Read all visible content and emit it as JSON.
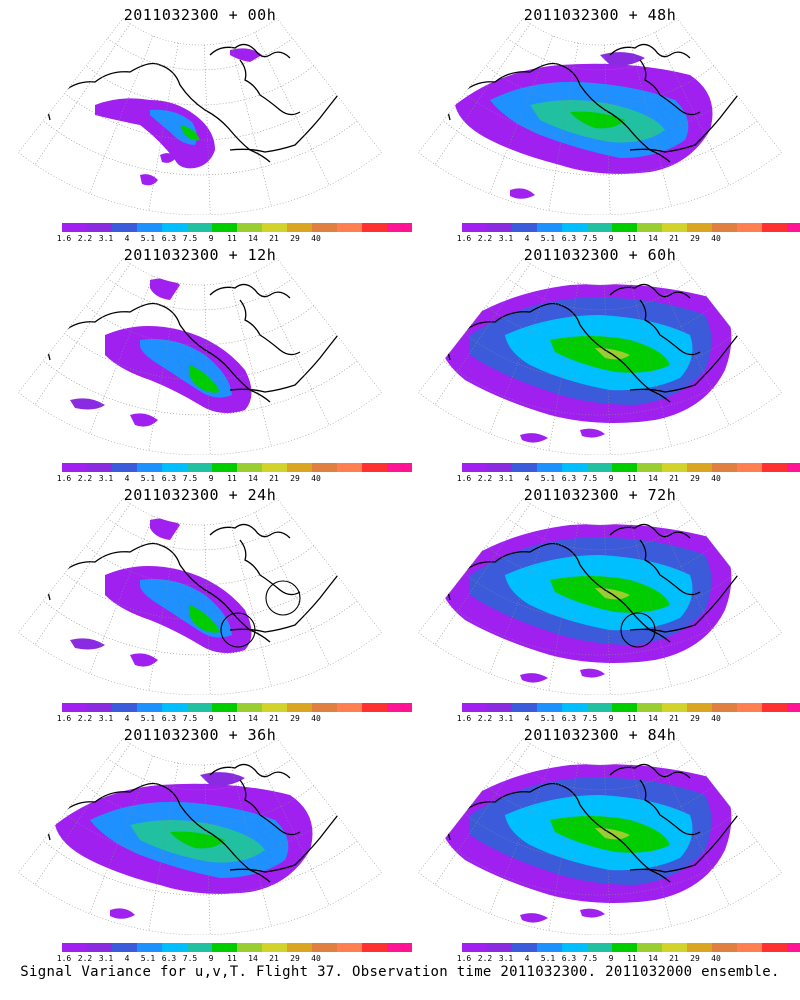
{
  "panels": [
    {
      "title": "2011032300 + 00h",
      "level": 0,
      "circles": 0
    },
    {
      "title": "2011032300 + 48h",
      "level": 2,
      "circles": 0
    },
    {
      "title": "2011032300 + 12h",
      "level": 1,
      "circles": 0
    },
    {
      "title": "2011032300 + 60h",
      "level": 3,
      "circles": 0
    },
    {
      "title": "2011032300 + 24h",
      "level": 1,
      "circles": 2
    },
    {
      "title": "2011032300 + 72h",
      "level": 3,
      "circles": 1
    },
    {
      "title": "2011032300 + 36h",
      "level": 2,
      "circles": 0
    },
    {
      "title": "2011032300 + 84h",
      "level": 3,
      "circles": 0
    }
  ],
  "colorbar": {
    "colors": [
      "#a020f0",
      "#8a2be2",
      "#3b5bdb",
      "#1e90ff",
      "#00bfff",
      "#20c0a0",
      "#00cd00",
      "#9acd32",
      "#d2d22a",
      "#daa520",
      "#e08040",
      "#ff7f50",
      "#ff3030",
      "#ff1493"
    ],
    "labels": [
      "1.6",
      "2.2",
      "3.1",
      "4",
      "5.1",
      "6.3",
      "7.5",
      "9",
      "11",
      "14",
      "21",
      "29",
      "40"
    ]
  },
  "caption": "Signal Variance for u,v,T. Flight 37. Observation time 2011032300. 2011032000 ensemble."
}
